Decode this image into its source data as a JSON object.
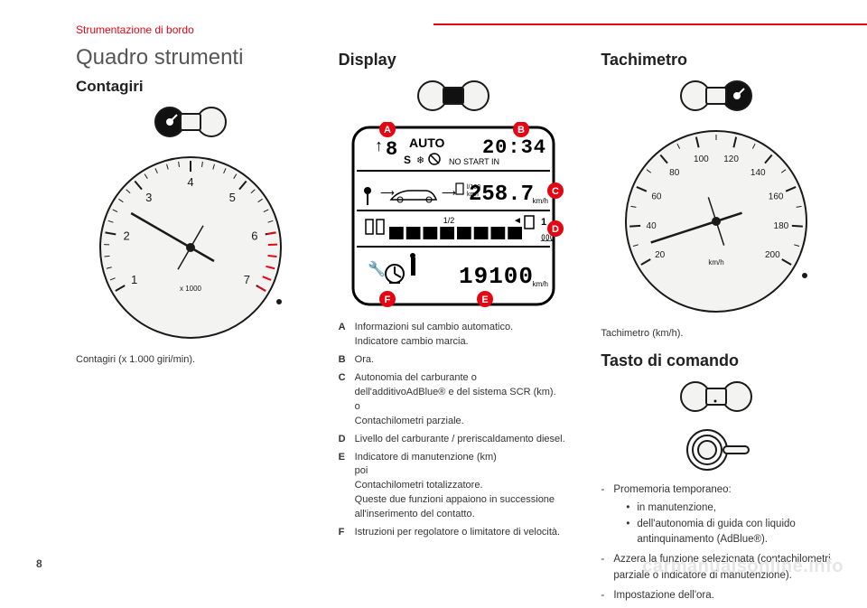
{
  "colors": {
    "accent": "#e30613",
    "text": "#2b2b2b",
    "muted": "#555555",
    "gauge_face": "#f3f3f1",
    "stroke": "#1a1a1a",
    "background": "#ffffff"
  },
  "page_number": "8",
  "watermark": "carmanualsonline.info",
  "section_tag": "Strumentazione di bordo",
  "col1": {
    "title": "Quadro strumenti",
    "subtitle": "Contagiri",
    "gauge": {
      "type": "tachometer",
      "ticks": [
        "1",
        "2",
        "3",
        "4",
        "5",
        "6",
        "7"
      ],
      "redline_from": 6,
      "label": "x 1000",
      "face_color": "#f3f3f1"
    },
    "caption": "Contagiri (x 1.000 giri/min)."
  },
  "col2": {
    "title": "Display",
    "lcd": {
      "type": "infographic",
      "background": "#ffffff",
      "frame_color": "#000000",
      "marker_color": "#e30613",
      "markers": [
        "A",
        "B",
        "C",
        "D",
        "E",
        "F"
      ],
      "row1": {
        "auto_text": "AUTO",
        "snow": "❄",
        "nostart": "NO START IN",
        "time": "20:34",
        "gear": "8",
        "gear_prefix": "↑",
        "mode": "S"
      },
      "row2": {
        "value": "258.7",
        "unit": "km/h",
        "cons_label": "l/100",
        "cons_label2": "km/l"
      },
      "row3": {
        "fuel_half": "1/2",
        "fuel_full": "1",
        "segments": 8
      },
      "row4": {
        "odo": "19100",
        "unit": "km/h"
      }
    },
    "definitions": [
      {
        "k": "A",
        "v": "Informazioni sul cambio automatico.\nIndicatore cambio marcia."
      },
      {
        "k": "B",
        "v": "Ora."
      },
      {
        "k": "C",
        "v": "Autonomia del carburante o dell'additivoAdBlue® e del sistema SCR (km).\no\nContachilometri parziale."
      },
      {
        "k": "D",
        "v": "Livello del carburante / preriscaldamento diesel."
      },
      {
        "k": "E",
        "v": "Indicatore di manutenzione (km)\npoi\nContachilometri totalizzatore.\nQueste due funzioni appaiono in successione all'inserimento del contatto."
      },
      {
        "k": "F",
        "v": "Istruzioni per regolatore o limitatore di velocità."
      }
    ]
  },
  "col3": {
    "title1": "Tachimetro",
    "gauge": {
      "type": "speedometer",
      "ticks": [
        "20",
        "40",
        "60",
        "80",
        "100",
        "120",
        "140",
        "160",
        "180",
        "200"
      ],
      "label": "km/h",
      "face_color": "#f3f3f1"
    },
    "caption": "Tachimetro (km/h).",
    "title2": "Tasto di comando",
    "bullets": [
      {
        "text": "Promemoria temporaneo:",
        "sub": [
          "in manutenzione,",
          "dell'autonomia di guida con liquido antinquinamento (AdBlue®)."
        ]
      },
      {
        "text": "Azzera la funzione selezionata (contachilometri parziale o indicatore di manutenzione)."
      },
      {
        "text": "Impostazione dell'ora."
      }
    ]
  }
}
